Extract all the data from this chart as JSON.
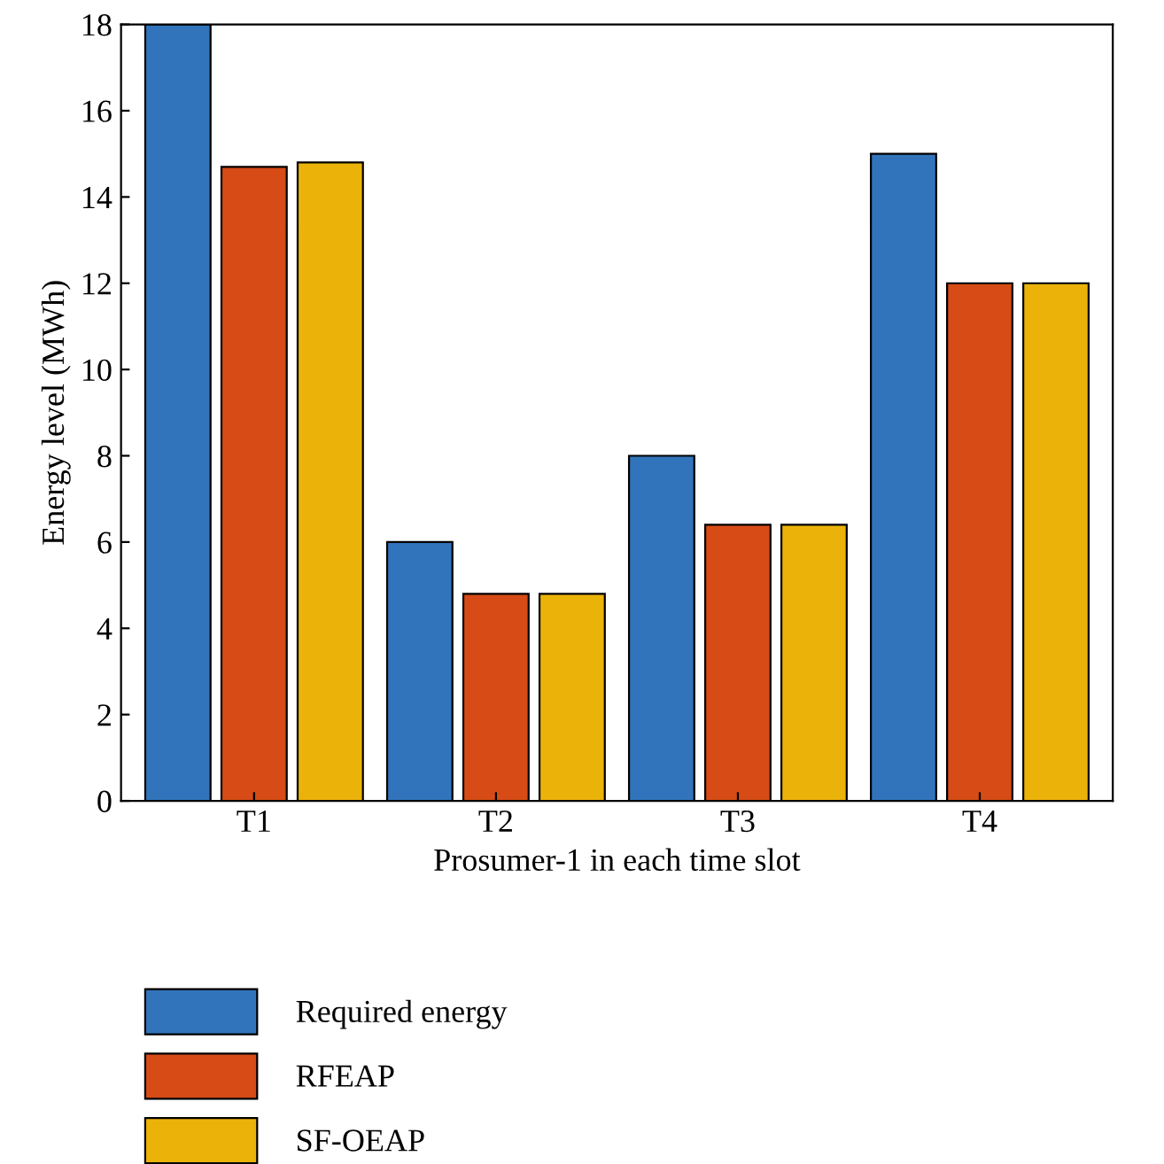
{
  "chart_data": {
    "type": "bar",
    "xlabel": "Prosumer-1 in each time slot",
    "ylabel": "Energy level (MWh)",
    "categories": [
      "T1",
      "T2",
      "T3",
      "T4"
    ],
    "series": [
      {
        "name": "Required energy",
        "color": "#3274bb",
        "values": [
          18,
          6,
          8,
          15
        ]
      },
      {
        "name": "RFEAP",
        "color": "#d64b16",
        "values": [
          14.7,
          4.8,
          6.4,
          12
        ]
      },
      {
        "name": "SF-OEAP",
        "color": "#ebb30a",
        "values": [
          14.8,
          4.8,
          6.4,
          12
        ]
      }
    ],
    "ylim": [
      0,
      18
    ],
    "yticks": [
      0,
      2,
      4,
      6,
      8,
      10,
      12,
      14,
      16,
      18
    ],
    "grid": false,
    "legend": "bottom left"
  }
}
